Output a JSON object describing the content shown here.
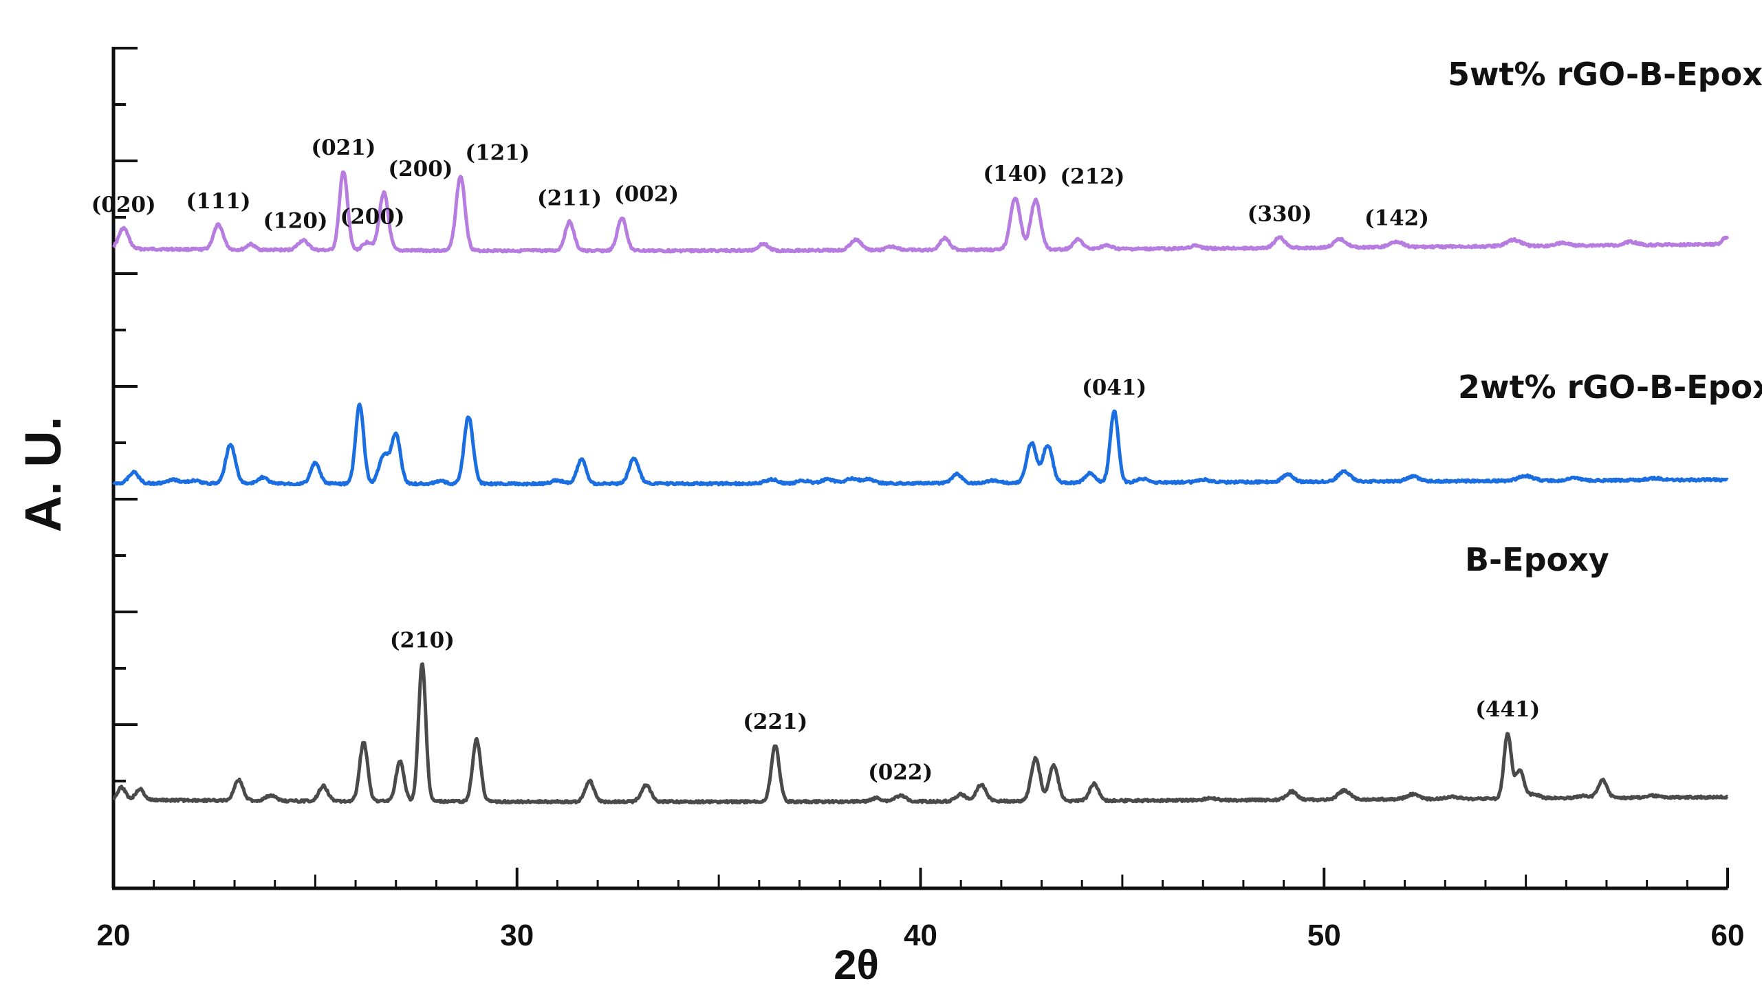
{
  "chart_data": {
    "type": "line",
    "xlabel": "2θ",
    "ylabel": "A. U.",
    "xlim": [
      20,
      60
    ],
    "x_ticks": [
      "20",
      "30",
      "40",
      "50",
      "60"
    ],
    "grid": false,
    "series": [
      {
        "name": "5wt% rGO-B-Epoxy",
        "color": "#b77ce0",
        "baseline": 38,
        "peaks": [
          [
            20.25,
            30,
            0.12
          ],
          [
            22.6,
            36,
            0.12
          ],
          [
            23.4,
            8,
            0.1
          ],
          [
            24.7,
            14,
            0.13
          ],
          [
            25.7,
            115,
            0.1
          ],
          [
            26.3,
            12,
            0.12
          ],
          [
            26.7,
            84,
            0.11
          ],
          [
            28.6,
            108,
            0.11
          ],
          [
            31.3,
            42,
            0.11
          ],
          [
            32.6,
            48,
            0.11
          ],
          [
            36.1,
            10,
            0.12
          ],
          [
            38.4,
            15,
            0.14
          ],
          [
            39.3,
            5,
            0.14
          ],
          [
            40.6,
            17,
            0.12
          ],
          [
            42.35,
            76,
            0.12
          ],
          [
            42.85,
            72,
            0.12
          ],
          [
            43.9,
            14,
            0.12
          ],
          [
            44.6,
            5,
            0.14
          ],
          [
            46.8,
            4,
            0.14
          ],
          [
            48.9,
            15,
            0.13
          ],
          [
            50.4,
            12,
            0.15
          ],
          [
            51.8,
            8,
            0.16
          ],
          [
            54.7,
            9,
            0.18
          ],
          [
            55.9,
            4,
            0.15
          ],
          [
            57.6,
            5,
            0.15
          ],
          [
            59.95,
            10,
            0.08
          ]
        ],
        "hkl_labels": [
          {
            "label": "(020)",
            "x": 20.25
          },
          {
            "label": "(111)",
            "x": 22.6
          },
          {
            "label": "(120)",
            "x": 23.4
          },
          {
            "label": "(200)",
            "x": 24.7
          },
          {
            "label": "(021)",
            "x": 25.7
          },
          {
            "label": "(200)",
            "x": 26.7
          },
          {
            "label": "(121)",
            "x": 28.6
          },
          {
            "label": "(211)",
            "x": 31.3
          },
          {
            "label": "(002)",
            "x": 32.6
          },
          {
            "label": "(140)",
            "x": 42.35
          },
          {
            "label": "(212)",
            "x": 42.85
          },
          {
            "label": "(330)",
            "x": 48.9
          },
          {
            "label": "(142)",
            "x": 51.8
          }
        ]
      },
      {
        "name": "2wt% rGO-B-Epoxy",
        "color": "#1a6ee0",
        "baseline": 18,
        "peaks": [
          [
            20.5,
            16,
            0.12
          ],
          [
            21.5,
            5,
            0.15
          ],
          [
            22.0,
            4,
            0.15
          ],
          [
            22.9,
            56,
            0.12
          ],
          [
            23.7,
            9,
            0.12
          ],
          [
            25.0,
            30,
            0.11
          ],
          [
            26.1,
            115,
            0.1
          ],
          [
            26.7,
            42,
            0.12
          ],
          [
            27.0,
            72,
            0.11
          ],
          [
            28.1,
            4,
            0.12
          ],
          [
            28.8,
            98,
            0.11
          ],
          [
            31.0,
            5,
            0.14
          ],
          [
            31.6,
            36,
            0.11
          ],
          [
            32.9,
            37,
            0.12
          ],
          [
            36.3,
            6,
            0.15
          ],
          [
            37.1,
            4,
            0.15
          ],
          [
            37.7,
            6,
            0.15
          ],
          [
            38.3,
            7,
            0.14
          ],
          [
            38.7,
            6,
            0.14
          ],
          [
            40.9,
            13,
            0.12
          ],
          [
            41.8,
            4,
            0.14
          ],
          [
            42.75,
            58,
            0.12
          ],
          [
            43.15,
            55,
            0.12
          ],
          [
            44.2,
            14,
            0.12
          ],
          [
            44.8,
            104,
            0.1
          ],
          [
            45.5,
            5,
            0.14
          ],
          [
            47.0,
            4,
            0.14
          ],
          [
            49.1,
            11,
            0.13
          ],
          [
            50.5,
            15,
            0.15
          ],
          [
            52.2,
            7,
            0.15
          ],
          [
            55.0,
            7,
            0.18
          ],
          [
            56.2,
            4,
            0.15
          ],
          [
            58.2,
            3,
            0.16
          ]
        ],
        "hkl_labels": [
          {
            "label": "(041)",
            "x": 44.8
          }
        ]
      },
      {
        "name": "B-Epoxy",
        "color": "#4a4a4a",
        "baseline": 32,
        "peaks": [
          [
            20.2,
            18,
            0.1
          ],
          [
            20.65,
            16,
            0.1
          ],
          [
            23.1,
            30,
            0.11
          ],
          [
            23.9,
            8,
            0.12
          ],
          [
            25.2,
            22,
            0.11
          ],
          [
            26.2,
            86,
            0.1
          ],
          [
            27.1,
            58,
            0.1
          ],
          [
            27.65,
            200,
            0.09
          ],
          [
            29.0,
            90,
            0.1
          ],
          [
            31.8,
            30,
            0.11
          ],
          [
            33.2,
            24,
            0.12
          ],
          [
            36.4,
            82,
            0.1
          ],
          [
            38.9,
            5,
            0.12
          ],
          [
            39.5,
            8,
            0.14
          ],
          [
            41.0,
            10,
            0.12
          ],
          [
            41.5,
            24,
            0.12
          ],
          [
            42.85,
            62,
            0.11
          ],
          [
            43.3,
            52,
            0.11
          ],
          [
            44.3,
            25,
            0.11
          ],
          [
            47.2,
            3,
            0.15
          ],
          [
            49.2,
            12,
            0.13
          ],
          [
            50.5,
            13,
            0.15
          ],
          [
            52.2,
            7,
            0.15
          ],
          [
            53.2,
            3,
            0.15
          ],
          [
            54.55,
            95,
            0.09
          ],
          [
            54.85,
            42,
            0.1
          ],
          [
            55.2,
            6,
            0.14
          ],
          [
            56.4,
            3,
            0.14
          ],
          [
            56.9,
            26,
            0.11
          ],
          [
            58.1,
            3,
            0.15
          ]
        ],
        "hkl_labels": [
          {
            "label": "(210)",
            "x": 27.65
          },
          {
            "label": "(221)",
            "x": 36.4
          },
          {
            "label": "(022)",
            "x": 39.5
          },
          {
            "label": "(441)",
            "x": 54.55
          }
        ]
      }
    ]
  }
}
